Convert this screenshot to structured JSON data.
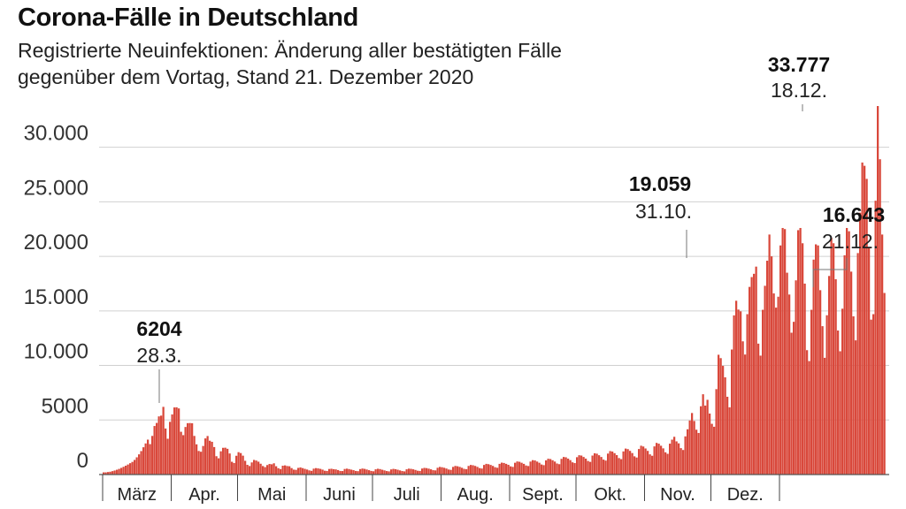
{
  "title": "Corona-Fälle in Deutschland",
  "subtitle": "Registrierte Neuinfektionen: Änderung aller bestätigten Fälle gegenüber dem Vortag, Stand 21. Dezember 2020",
  "chart_data": {
    "type": "bar",
    "title": "Corona-Fälle in Deutschland",
    "ylim": [
      0,
      33777
    ],
    "y_ticks": [
      {
        "value": 0,
        "label": "0"
      },
      {
        "value": 5000,
        "label": "5000"
      },
      {
        "value": 10000,
        "label": "10.000"
      },
      {
        "value": 15000,
        "label": "15.000"
      },
      {
        "value": 20000,
        "label": "20.000"
      },
      {
        "value": 25000,
        "label": "25.000"
      },
      {
        "value": 30000,
        "label": "30.000"
      }
    ],
    "grid": true,
    "color": "#d9483b",
    "months": [
      "März",
      "Apr.",
      "Mai",
      "Juni",
      "Juli",
      "Aug.",
      "Sept.",
      "Okt.",
      "Nov.",
      "Dez."
    ],
    "annotations": [
      {
        "value": "6204",
        "date": "28.3."
      },
      {
        "value": "19.059",
        "date": "31.10."
      },
      {
        "value": "33.777",
        "date": "18.12."
      },
      {
        "value": "16.643",
        "date": "21.12."
      }
    ],
    "series": [
      {
        "x_start": "2020-03-01",
        "x_end": "2020-12-21",
        "values": [
          200,
          200,
          230,
          260,
          310,
          370,
          440,
          520,
          610,
          710,
          810,
          920,
          1040,
          1160,
          1340,
          1580,
          1850,
          2150,
          2500,
          2850,
          3200,
          2790,
          3540,
          4450,
          4730,
          5330,
          5400,
          6204,
          4220,
          3280,
          4830,
          5510,
          6150,
          6160,
          6060,
          3920,
          3610,
          4360,
          4710,
          4720,
          4700,
          3540,
          2770,
          2160,
          2090,
          2620,
          3310,
          3530,
          3100,
          3000,
          2520,
          1680,
          1490,
          2130,
          2450,
          2460,
          2360,
          1930,
          1170,
          1060,
          1720,
          2050,
          1970,
          1730,
          1260,
          890,
          780,
          1110,
          1340,
          1280,
          1180,
          990,
          780,
          680,
          870,
          970,
          940,
          1030,
          760,
          580,
          500,
          810,
          840,
          780,
          760,
          590,
          450,
          430,
          610,
          650,
          590,
          520,
          460,
          380,
          340,
          540,
          590,
          560,
          520,
          450,
          350,
          330,
          510,
          530,
          490,
          470,
          410,
          330,
          320,
          510,
          540,
          500,
          450,
          400,
          330,
          310,
          500,
          550,
          520,
          460,
          400,
          330,
          300,
          480,
          530,
          500,
          440,
          380,
          320,
          290,
          470,
          520,
          490,
          440,
          380,
          320,
          290,
          480,
          540,
          520,
          480,
          420,
          350,
          330,
          550,
          610,
          590,
          540,
          480,
          400,
          380,
          620,
          700,
          670,
          620,
          550,
          460,
          430,
          700,
          790,
          760,
          700,
          620,
          520,
          490,
          790,
          880,
          850,
          790,
          700,
          590,
          550,
          880,
          980,
          950,
          880,
          790,
          670,
          620,
          980,
          1090,
          1060,
          980,
          890,
          750,
          700,
          1080,
          1200,
          1170,
          1080,
          980,
          830,
          780,
          1190,
          1320,
          1290,
          1190,
          1080,
          920,
          860,
          1300,
          1450,
          1420,
          1310,
          1190,
          1010,
          950,
          1440,
          1610,
          1580,
          1460,
          1320,
          1120,
          1050,
          1590,
          1770,
          1740,
          1610,
          1460,
          1240,
          1160,
          1740,
          1950,
          1910,
          1770,
          1610,
          1370,
          1280,
          1920,
          2150,
          2110,
          1960,
          1780,
          1510,
          1410,
          2120,
          2380,
          2330,
          2170,
          1970,
          1670,
          1560,
          2340,
          2640,
          2570,
          2390,
          2170,
          1850,
          1720,
          2580,
          2900,
          2830,
          2640,
          2400,
          2040,
          1900,
          2830,
          3200,
          3460,
          3040,
          2860,
          2420,
          2250,
          3500,
          4150,
          4950,
          5640,
          4910,
          4110,
          3810,
          6260,
          7360,
          6320,
          6850,
          5590,
          4650,
          4380,
          7830,
          10980,
          10670,
          9960,
          8910,
          7130,
          6160,
          11460,
          14590,
          15930,
          15120,
          14960,
          12210,
          11000,
          14700,
          17200,
          18100,
          18400,
          19059,
          12000,
          10900,
          15100,
          17300,
          19600,
          22000,
          20000,
          16600,
          15300,
          16300,
          21000,
          22600,
          22500,
          18500,
          16500,
          13000,
          14000,
          17800,
          22400,
          22600,
          21200,
          17500,
          11400,
          10400,
          15100,
          19700,
          21100,
          21000,
          16900,
          13600,
          10700,
          14600,
          18200,
          21700,
          21200,
          17900,
          13200,
          11300,
          15200,
          20100,
          22600,
          22300,
          18600,
          14500,
          12300,
          20300,
          24000,
          28600,
          28300,
          27100,
          20800,
          14200,
          14700,
          25100,
          33777,
          28900,
          22000,
          16643
        ]
      }
    ]
  }
}
